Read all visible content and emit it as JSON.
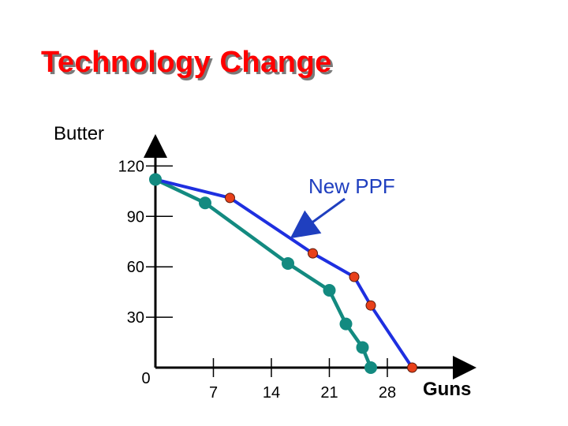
{
  "chart_data": {
    "type": "line",
    "title": "Technology Change",
    "xlabel": "Guns",
    "ylabel": "Butter",
    "xlim": [
      0,
      35
    ],
    "ylim": [
      0,
      130
    ],
    "x_ticks": [
      7,
      14,
      21,
      28
    ],
    "x_tick_labels": [
      "7",
      "14",
      "21",
      "28"
    ],
    "y_ticks": [
      30,
      60,
      90,
      120
    ],
    "y_tick_labels": [
      "30",
      "60",
      "90",
      "120"
    ],
    "origin_label": "0",
    "annotation": "New PPF",
    "series": [
      {
        "color": "#1e2fe0",
        "marker_color": "#e8401a",
        "points": [
          [
            0,
            112
          ],
          [
            9,
            101
          ],
          [
            19,
            68
          ],
          [
            24,
            54
          ],
          [
            26,
            37
          ],
          [
            31,
            0
          ]
        ]
      },
      {
        "color": "#138a80",
        "marker_color": "#138a80",
        "points": [
          [
            0,
            112
          ],
          [
            6,
            98
          ],
          [
            16,
            62
          ],
          [
            21,
            46
          ],
          [
            23,
            26
          ],
          [
            25,
            12
          ],
          [
            26,
            0
          ]
        ]
      }
    ],
    "grid": false
  }
}
